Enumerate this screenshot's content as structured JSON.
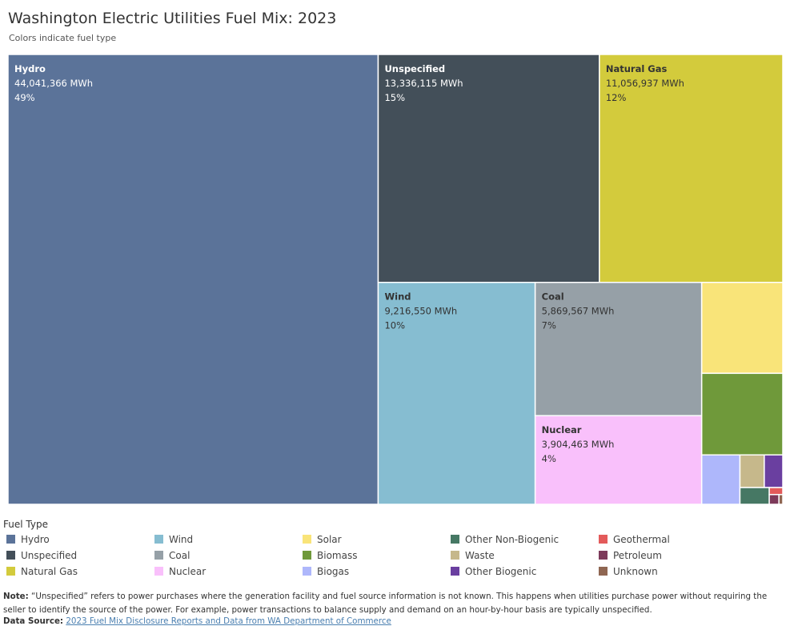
{
  "title": "Washington Electric Utilities Fuel Mix: 2023",
  "subtitle": "Colors indicate fuel type",
  "chart_data": {
    "type": "treemap",
    "title": "Washington Electric Utilities Fuel Mix: 2023",
    "unit": "MWh",
    "items": [
      {
        "name": "Hydro",
        "value": 44041366,
        "value_label": "44,041,366 MWh",
        "pct_label": "49%",
        "color": "#5B7399",
        "label_color": "#ffffff",
        "labeled": true
      },
      {
        "name": "Unspecified",
        "value": 13336115,
        "value_label": "13,336,115 MWh",
        "pct_label": "15%",
        "color": "#434F59",
        "label_color": "#ffffff",
        "labeled": true
      },
      {
        "name": "Natural Gas",
        "value": 11056937,
        "value_label": "11,056,937 MWh",
        "pct_label": "12%",
        "color": "#D3CB3C",
        "label_color": "#333333",
        "labeled": true
      },
      {
        "name": "Wind",
        "value": 9216550,
        "value_label": "9,216,550 MWh",
        "pct_label": "10%",
        "color": "#86BDD1",
        "label_color": "#333333",
        "labeled": true
      },
      {
        "name": "Coal",
        "value": 5869567,
        "value_label": "5,869,567 MWh",
        "pct_label": "7%",
        "color": "#96A0A7",
        "label_color": "#333333",
        "labeled": true
      },
      {
        "name": "Nuclear",
        "value": 3904463,
        "value_label": "3,904,463 MWh",
        "pct_label": "4%",
        "color": "#F9C0FB",
        "label_color": "#333333",
        "labeled": true
      },
      {
        "name": "Solar",
        "value": 1950000,
        "color": "#F9E479",
        "labeled": false
      },
      {
        "name": "Biomass",
        "value": 1750000,
        "color": "#6F993A",
        "labeled": false
      },
      {
        "name": "Biogas",
        "value": 500000,
        "color": "#AEB7FB",
        "labeled": false
      },
      {
        "name": "Waste",
        "value": 210000,
        "color": "#C6B88B",
        "labeled": false
      },
      {
        "name": "Other Biogenic",
        "value": 160000,
        "color": "#6A3FA0",
        "labeled": false
      },
      {
        "name": "Other Non-Biogenic",
        "value": 130000,
        "color": "#467864",
        "labeled": false
      },
      {
        "name": "Geothermal",
        "value": 25000,
        "color": "#E35A5A",
        "labeled": false
      },
      {
        "name": "Petroleum",
        "value": 25000,
        "color": "#7D3A5A",
        "labeled": false
      },
      {
        "name": "Unknown",
        "value": 10000,
        "color": "#8F6652",
        "labeled": false
      }
    ]
  },
  "legend": {
    "title": "Fuel Type",
    "items": [
      {
        "label": "Hydro",
        "color": "#5B7399"
      },
      {
        "label": "Unspecified",
        "color": "#434F59"
      },
      {
        "label": "Natural Gas",
        "color": "#D3CB3C"
      },
      {
        "label": "Wind",
        "color": "#86BDD1"
      },
      {
        "label": "Coal",
        "color": "#96A0A7"
      },
      {
        "label": "Nuclear",
        "color": "#F9C0FB"
      },
      {
        "label": "Solar",
        "color": "#F9E479"
      },
      {
        "label": "Biomass",
        "color": "#6F993A"
      },
      {
        "label": "Biogas",
        "color": "#AEB7FB"
      },
      {
        "label": "Other Non-Biogenic",
        "color": "#467864"
      },
      {
        "label": "Waste",
        "color": "#C6B88B"
      },
      {
        "label": "Other Biogenic",
        "color": "#6A3FA0"
      },
      {
        "label": "Geothermal",
        "color": "#E35A5A"
      },
      {
        "label": "Petroleum",
        "color": "#7D3A5A"
      },
      {
        "label": "Unknown",
        "color": "#8F6652"
      }
    ]
  },
  "note": {
    "label": "Note:",
    "text": " “Unspecified” refers to power purchases where the generation facility and fuel source information is not known. This happens when utilities purchase power without requiring the seller to identify the source of the power. For example, power transactions to balance supply and demand on an hour-by-hour basis are typically unspecified."
  },
  "source": {
    "label": "Data Source:",
    "link_text": "2023 Fuel Mix Disclosure Reports and Data from WA Department of Commerce"
  }
}
